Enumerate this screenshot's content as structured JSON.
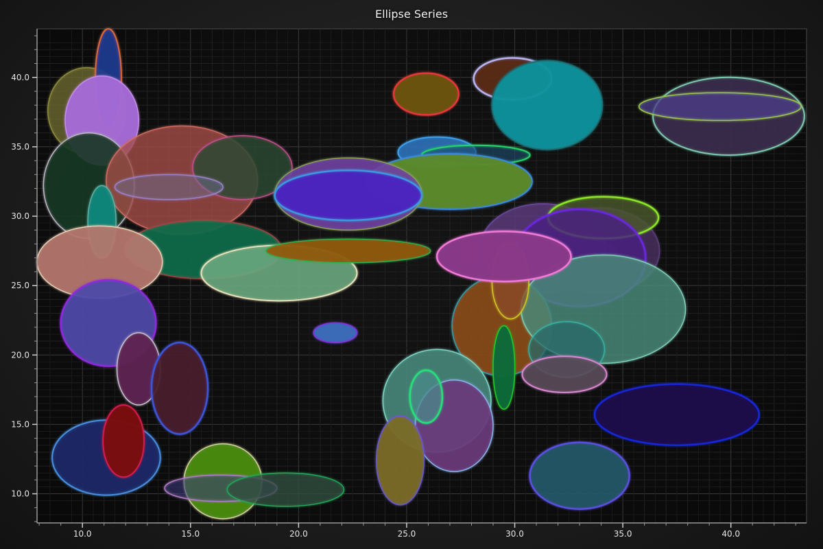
{
  "chart_data": {
    "type": "scatter",
    "title": "Ellipse Series",
    "xlabel": "",
    "ylabel": "",
    "xlim": [
      7.9,
      43.5
    ],
    "ylim": [
      7.9,
      43.5
    ],
    "x_ticks": [
      "10.0",
      "15.0",
      "20.0",
      "25.0",
      "30.0",
      "35.0",
      "40.0"
    ],
    "y_ticks": [
      "10.0",
      "15.0",
      "20.0",
      "25.0",
      "30.0",
      "35.0",
      "40.0"
    ],
    "grid": true,
    "legend": "none",
    "series": [
      {
        "values": [
          {
            "x": 10.2,
            "y": 37.6,
            "rx": 1.8,
            "ry": 3.1
          }
        ],
        "fill": "#6b6a2e",
        "stroke": "#8f8c43",
        "fill_opacity": 0.55,
        "stroke_width": 1.5
      },
      {
        "values": [
          {
            "x": 11.2,
            "y": 39.9,
            "rx": 0.6,
            "ry": 3.6
          }
        ],
        "fill": "#1f3a8f",
        "stroke": "#d86a3c",
        "fill_opacity": 0.75,
        "stroke_width": 2
      },
      {
        "values": [
          {
            "x": 10.9,
            "y": 36.9,
            "rx": 1.7,
            "ry": 3.2
          }
        ],
        "fill": "#a46ad6",
        "stroke": "#c58ee8",
        "fill_opacity": 0.85,
        "stroke_width": 1.5
      },
      {
        "values": [
          {
            "x": 10.3,
            "y": 32.2,
            "rx": 2.1,
            "ry": 3.8
          }
        ],
        "fill": "#163622",
        "stroke": "#bdbbc8",
        "fill_opacity": 0.7,
        "stroke_width": 1.5
      },
      {
        "values": [
          {
            "x": 14.6,
            "y": 32.6,
            "rx": 3.5,
            "ry": 3.9
          }
        ],
        "fill": "#a44d47",
        "stroke": "#cf6d62",
        "fill_opacity": 0.55,
        "stroke_width": 1.5
      },
      {
        "values": [
          {
            "x": 17.4,
            "y": 33.5,
            "rx": 2.3,
            "ry": 2.3
          }
        ],
        "fill": "#2c4a30",
        "stroke": "#c2508e",
        "fill_opacity": 0.6,
        "stroke_width": 1.5
      },
      {
        "values": [
          {
            "x": 14.0,
            "y": 32.1,
            "rx": 2.5,
            "ry": 0.9
          }
        ],
        "fill": "#6a6a8a",
        "stroke": "#9a82c8",
        "fill_opacity": 0.3,
        "stroke_width": 1.5
      },
      {
        "values": [
          {
            "x": 10.9,
            "y": 29.6,
            "rx": 0.65,
            "ry": 2.6
          }
        ],
        "fill": "#12877a",
        "stroke": "#5fb0a5",
        "fill_opacity": 0.8,
        "stroke_width": 1.5
      },
      {
        "values": [
          {
            "x": 15.6,
            "y": 27.6,
            "rx": 3.6,
            "ry": 2.1
          }
        ],
        "fill": "#0e6b4a",
        "stroke": "#a04545",
        "fill_opacity": 0.75,
        "stroke_width": 1.5
      },
      {
        "values": [
          {
            "x": 10.8,
            "y": 26.7,
            "rx": 2.9,
            "ry": 2.6
          }
        ],
        "fill": "#b5776d",
        "stroke": "#e6cfb4",
        "fill_opacity": 0.75,
        "stroke_width": 1.5
      },
      {
        "values": [
          {
            "x": 19.1,
            "y": 25.9,
            "rx": 3.6,
            "ry": 2.0
          }
        ],
        "fill": "#6aa77e",
        "stroke": "#e8e2bb",
        "fill_opacity": 0.7,
        "stroke_width": 2
      },
      {
        "values": [
          {
            "x": 22.3,
            "y": 27.5,
            "rx": 3.8,
            "ry": 0.85
          }
        ],
        "fill": "#8f5a0c",
        "stroke": "#2fae4f",
        "fill_opacity": 0.8,
        "stroke_width": 1.5
      },
      {
        "values": [
          {
            "x": 11.2,
            "y": 22.3,
            "rx": 2.2,
            "ry": 3.1
          }
        ],
        "fill": "#4d4aa8",
        "stroke": "#8d2ad9",
        "fill_opacity": 0.75,
        "stroke_width": 2.5
      },
      {
        "values": [
          {
            "x": 12.6,
            "y": 19.0,
            "rx": 1.0,
            "ry": 2.6
          }
        ],
        "fill": "#5e2150",
        "stroke": "#c8c0d2",
        "fill_opacity": 0.8,
        "stroke_width": 1.5
      },
      {
        "values": [
          {
            "x": 14.5,
            "y": 17.6,
            "rx": 1.3,
            "ry": 3.3
          }
        ],
        "fill": "#4a1e2e",
        "stroke": "#3d56d8",
        "fill_opacity": 0.75,
        "stroke_width": 2.5
      },
      {
        "values": [
          {
            "x": 11.1,
            "y": 12.6,
            "rx": 2.5,
            "ry": 2.7
          }
        ],
        "fill": "#1c2a6a",
        "stroke": "#4a8fe0",
        "fill_opacity": 0.75,
        "stroke_width": 2
      },
      {
        "values": [
          {
            "x": 11.9,
            "y": 13.8,
            "rx": 0.95,
            "ry": 2.6
          }
        ],
        "fill": "#7a1010",
        "stroke": "#d31c4c",
        "fill_opacity": 0.85,
        "stroke_width": 2
      },
      {
        "values": [
          {
            "x": 16.5,
            "y": 10.9,
            "rx": 1.8,
            "ry": 2.7
          }
        ],
        "fill": "#4a8a12",
        "stroke": "#d6d39e",
        "fill_opacity": 0.85,
        "stroke_width": 1.5
      },
      {
        "values": [
          {
            "x": 16.4,
            "y": 10.4,
            "rx": 2.6,
            "ry": 0.95
          }
        ],
        "fill": "#3a3a7a",
        "stroke": "#b07ec8",
        "fill_opacity": 0.35,
        "stroke_width": 1.5
      },
      {
        "values": [
          {
            "x": 19.4,
            "y": 10.3,
            "rx": 2.7,
            "ry": 1.2
          }
        ],
        "fill": "#2f4c40",
        "stroke": "#22a85a",
        "fill_opacity": 0.55,
        "stroke_width": 1.5
      },
      {
        "values": [
          {
            "x": 25.9,
            "y": 38.8,
            "rx": 1.5,
            "ry": 1.5
          }
        ],
        "fill": "#6b5410",
        "stroke": "#e43838",
        "fill_opacity": 0.85,
        "stroke_width": 2.5
      },
      {
        "values": [
          {
            "x": 29.9,
            "y": 39.9,
            "rx": 1.8,
            "ry": 1.5
          }
        ],
        "fill": "#5a2a14",
        "stroke": "#b8b4f0",
        "fill_opacity": 0.8,
        "stroke_width": 2.5
      },
      {
        "values": [
          {
            "x": 31.5,
            "y": 38.0,
            "rx": 2.55,
            "ry": 3.2
          }
        ],
        "fill": "#12929c",
        "stroke": "#1d7075",
        "fill_opacity": 0.8,
        "stroke_width": 2
      },
      {
        "values": [
          {
            "x": 39.9,
            "y": 37.2,
            "rx": 3.5,
            "ry": 2.8
          }
        ],
        "fill": "#3a2c4a",
        "stroke": "#7ec8b2",
        "fill_opacity": 0.8,
        "stroke_width": 2
      },
      {
        "values": [
          {
            "x": 39.5,
            "y": 37.9,
            "rx": 3.75,
            "ry": 1.0
          }
        ],
        "fill": "#4c3c8a",
        "stroke": "#9ec850",
        "fill_opacity": 0.5,
        "stroke_width": 1.5
      },
      {
        "values": [
          {
            "x": 26.4,
            "y": 34.6,
            "rx": 1.8,
            "ry": 1.1
          }
        ],
        "fill": "#2c70b8",
        "stroke": "#3ea0e8",
        "fill_opacity": 0.7,
        "stroke_width": 2
      },
      {
        "values": [
          {
            "x": 28.2,
            "y": 34.4,
            "rx": 2.5,
            "ry": 0.7
          }
        ],
        "fill": "#1c4a6a",
        "stroke": "#28d46a",
        "fill_opacity": 0.4,
        "stroke_width": 2
      },
      {
        "values": [
          {
            "x": 27.0,
            "y": 32.5,
            "rx": 3.8,
            "ry": 2.0
          }
        ],
        "fill": "#5a8a2c",
        "stroke": "#3a8ae0",
        "fill_opacity": 0.85,
        "stroke_width": 2
      },
      {
        "values": [
          {
            "x": 22.3,
            "y": 31.6,
            "rx": 3.4,
            "ry": 2.6
          }
        ],
        "fill": "#6f40a0",
        "stroke": "#8aa058",
        "fill_opacity": 0.7,
        "stroke_width": 1.5
      },
      {
        "values": [
          {
            "x": 22.3,
            "y": 31.5,
            "rx": 3.4,
            "ry": 1.8
          }
        ],
        "fill": "#4a24c0",
        "stroke": "#3c98e0",
        "fill_opacity": 0.75,
        "stroke_width": 2.5
      },
      {
        "values": [
          {
            "x": 21.7,
            "y": 21.6,
            "rx": 1.0,
            "ry": 0.7
          }
        ],
        "fill": "#3a6ab8",
        "stroke": "#7a38d8",
        "fill_opacity": 0.9,
        "stroke_width": 2
      },
      {
        "values": [
          {
            "x": 31.0,
            "y": 27.3,
            "rx": 3.7,
            "ry": 1.5
          }
        ],
        "fill": "#4a2a5a",
        "stroke": "#7a3a9a",
        "fill_opacity": 0.7,
        "stroke_width": 1.5
      },
      {
        "values": [
          {
            "x": 31.3,
            "y": 27.7,
            "rx": 2.9,
            "ry": 3.2
          }
        ],
        "fill": "#5a3a7a",
        "stroke": "#6a4a9a",
        "fill_opacity": 0.6,
        "stroke_width": 1.5
      },
      {
        "values": [
          {
            "x": 33.9,
            "y": 27.5,
            "rx": 2.8,
            "ry": 3.1
          }
        ],
        "fill": "#4a3060",
        "stroke": "#5a3f78",
        "fill_opacity": 0.55,
        "stroke_width": 1.5
      },
      {
        "values": [
          {
            "x": 34.1,
            "y": 29.9,
            "rx": 2.55,
            "ry": 1.5
          }
        ],
        "fill": "#4a5a2a",
        "stroke": "#8ae628",
        "fill_opacity": 0.55,
        "stroke_width": 2.5
      },
      {
        "values": [
          {
            "x": 33.0,
            "y": 27.0,
            "rx": 3.05,
            "ry": 3.5
          }
        ],
        "fill": "#4a2280",
        "stroke": "#6a28e0",
        "fill_opacity": 0.6,
        "stroke_width": 2.5
      },
      {
        "values": [
          {
            "x": 29.4,
            "y": 22.1,
            "rx": 2.3,
            "ry": 3.6
          }
        ],
        "fill": "#8a4c18",
        "stroke": "#2ea0a8",
        "fill_opacity": 0.7,
        "stroke_width": 1.5
      },
      {
        "values": [
          {
            "x": 34.1,
            "y": 23.3,
            "rx": 3.8,
            "ry": 3.9
          }
        ],
        "fill": "#4a8878",
        "stroke": "#80d0b8",
        "fill_opacity": 0.6,
        "stroke_width": 1.5
      },
      {
        "values": [
          {
            "x": 29.8,
            "y": 25.3,
            "rx": 0.85,
            "ry": 2.7
          }
        ],
        "fill": "#8a4a28",
        "stroke": "#d6c828",
        "fill_opacity": 0.5,
        "stroke_width": 1.5
      },
      {
        "values": [
          {
            "x": 29.5,
            "y": 27.1,
            "rx": 3.1,
            "ry": 1.8
          }
        ],
        "fill": "#8a3a88",
        "stroke": "#f07ad8",
        "fill_opacity": 0.85,
        "stroke_width": 2.5
      },
      {
        "values": [
          {
            "x": 32.4,
            "y": 20.4,
            "rx": 1.75,
            "ry": 2.0
          }
        ],
        "fill": "#2a6a68",
        "stroke": "#3ab0a0",
        "fill_opacity": 0.5,
        "stroke_width": 1.5
      },
      {
        "values": [
          {
            "x": 32.3,
            "y": 18.6,
            "rx": 1.95,
            "ry": 1.3
          }
        ],
        "fill": "#5a4a58",
        "stroke": "#d888d0",
        "fill_opacity": 0.7,
        "stroke_width": 2
      },
      {
        "values": [
          {
            "x": 29.5,
            "y": 19.1,
            "rx": 0.5,
            "ry": 3.0
          }
        ],
        "fill": "#0e6a3a",
        "stroke": "#28c828",
        "fill_opacity": 0.85,
        "stroke_width": 1.5
      },
      {
        "values": [
          {
            "x": 37.5,
            "y": 15.7,
            "rx": 3.8,
            "ry": 2.2
          }
        ],
        "fill": "#1a0a4a",
        "stroke": "#1428d8",
        "fill_opacity": 0.85,
        "stroke_width": 2.5
      },
      {
        "values": [
          {
            "x": 33.0,
            "y": 11.3,
            "rx": 2.3,
            "ry": 2.4
          }
        ],
        "fill": "#245868",
        "stroke": "#5a50e0",
        "fill_opacity": 0.75,
        "stroke_width": 2.5
      },
      {
        "values": [
          {
            "x": 26.4,
            "y": 16.7,
            "rx": 2.5,
            "ry": 3.7
          }
        ],
        "fill": "#4a8a7c",
        "stroke": "#80d8c8",
        "fill_opacity": 0.65,
        "stroke_width": 1.5
      },
      {
        "values": [
          {
            "x": 27.2,
            "y": 14.9,
            "rx": 1.8,
            "ry": 3.3
          }
        ],
        "fill": "#6a3a7a",
        "stroke": "#8ab4f0",
        "fill_opacity": 0.75,
        "stroke_width": 1.5
      },
      {
        "values": [
          {
            "x": 24.7,
            "y": 12.4,
            "rx": 1.1,
            "ry": 3.2
          }
        ],
        "fill": "#7a6a28",
        "stroke": "#6a5ad0",
        "fill_opacity": 0.8,
        "stroke_width": 1.5
      },
      {
        "values": [
          {
            "x": 25.9,
            "y": 17.0,
            "rx": 0.75,
            "ry": 1.9
          }
        ],
        "fill": "#4a8a8a",
        "stroke": "#28e07a",
        "fill_opacity": 0.5,
        "stroke_width": 2.5
      }
    ]
  }
}
